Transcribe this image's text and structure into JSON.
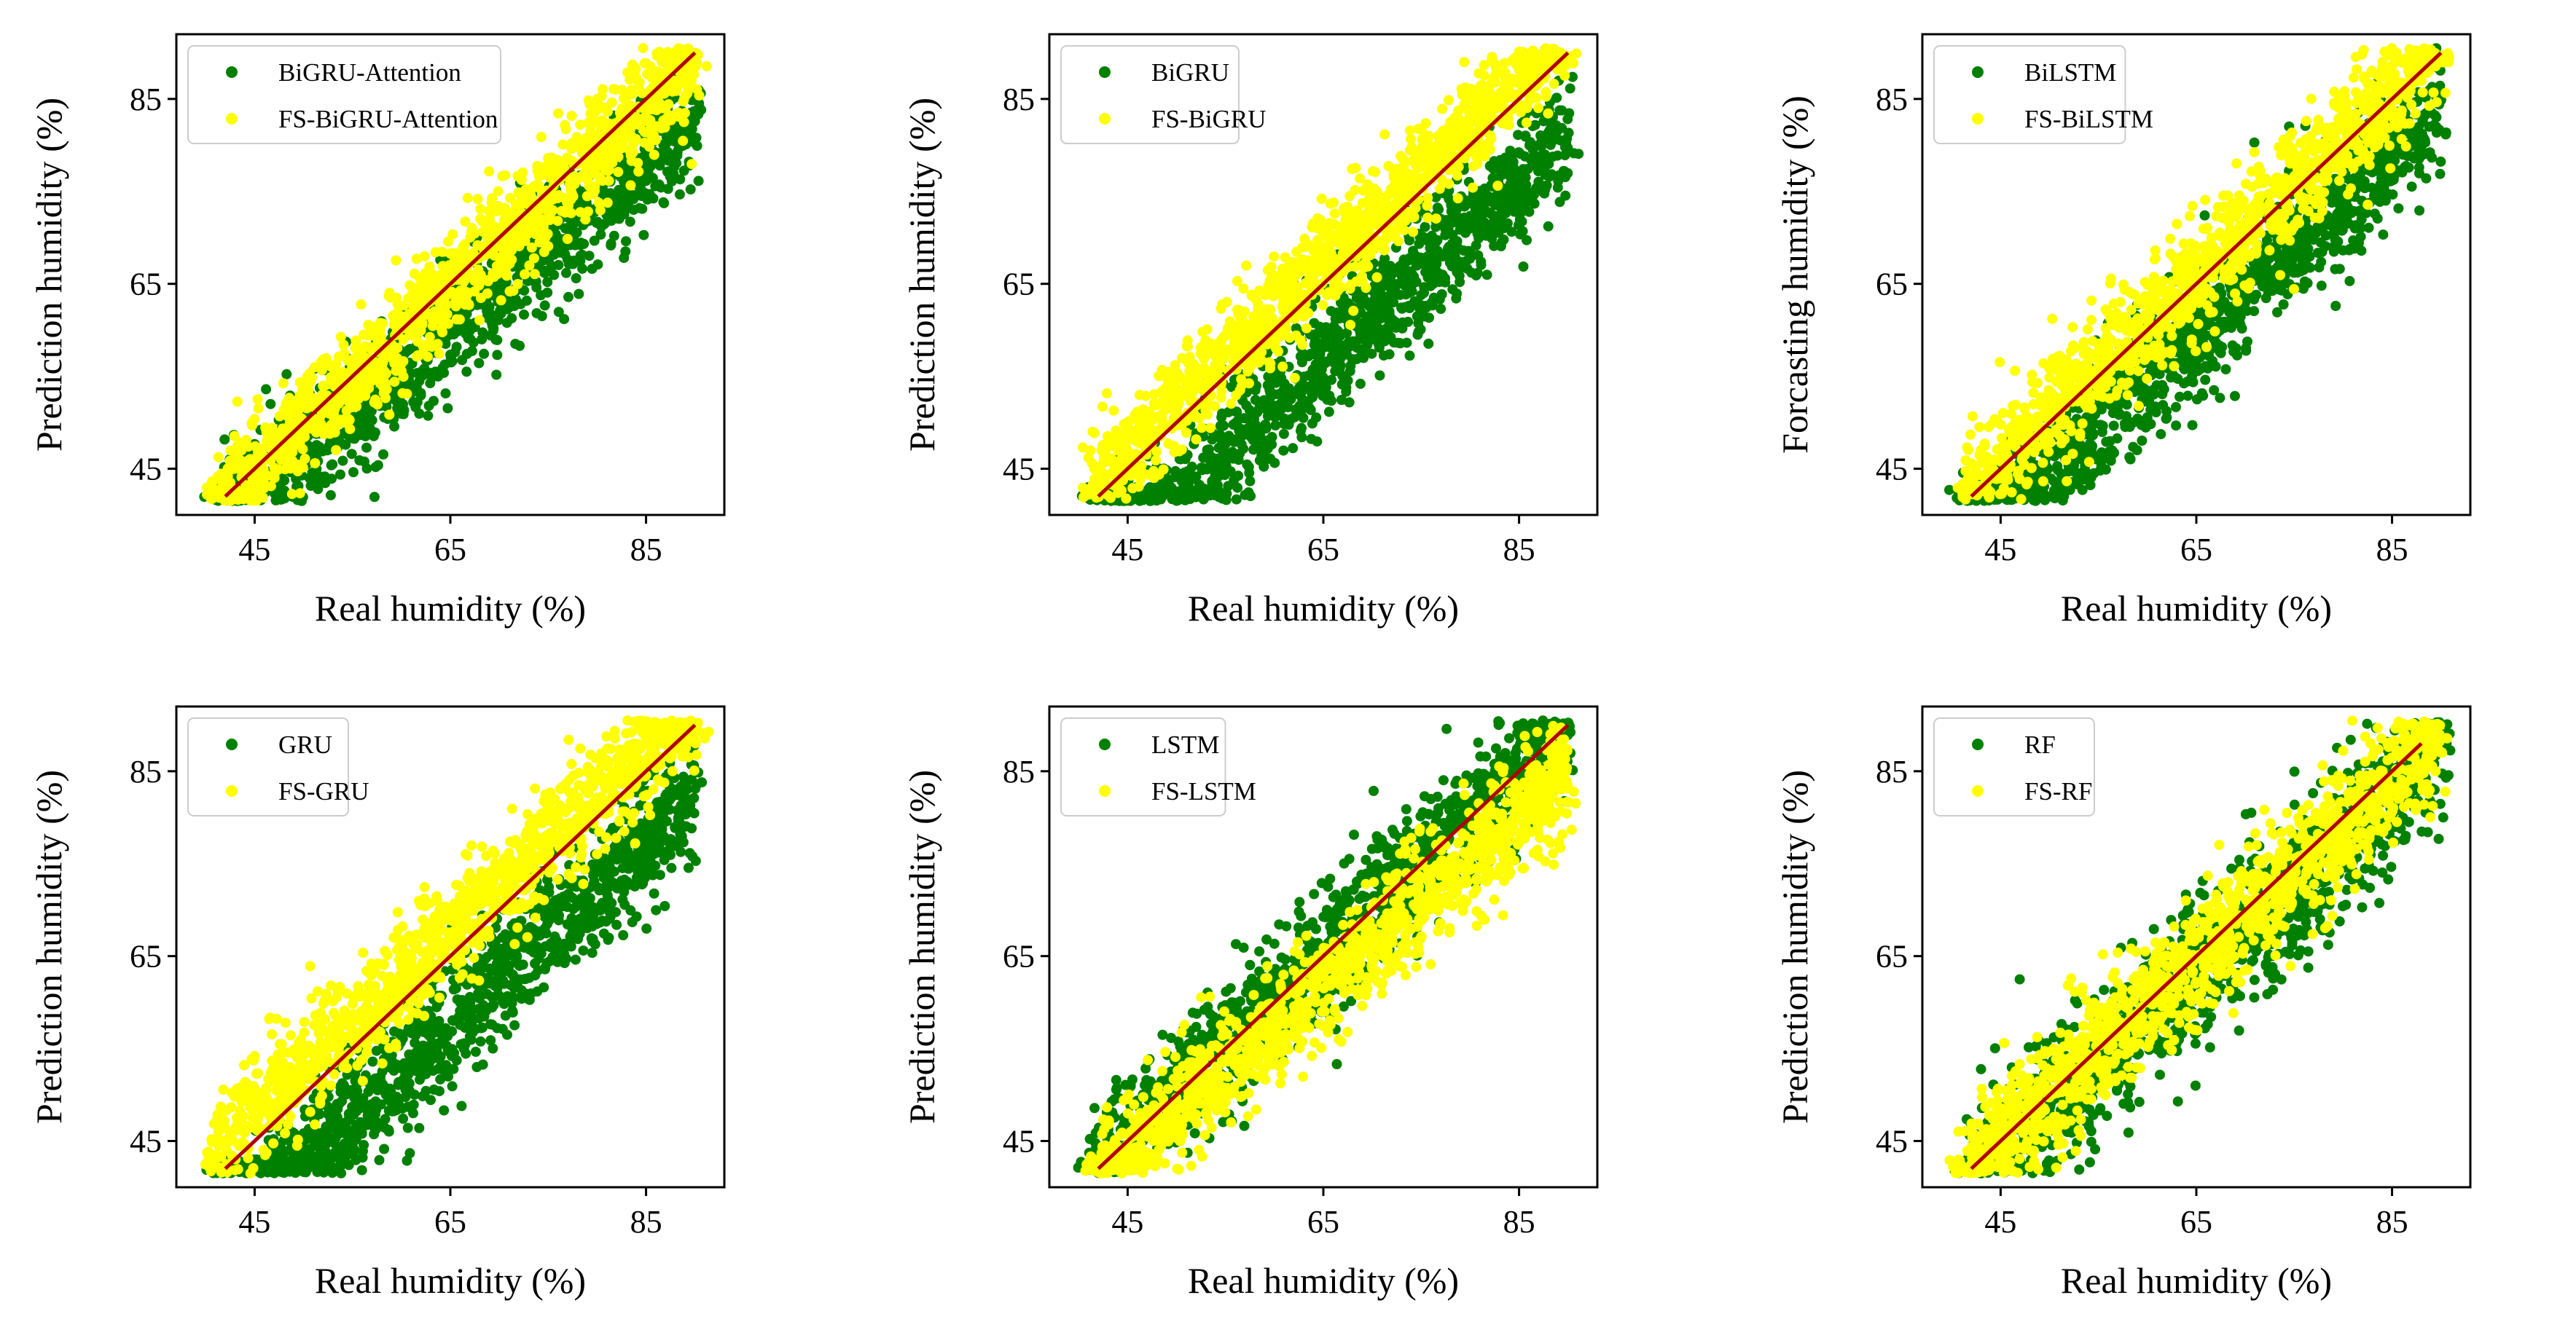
{
  "figure": {
    "colors": {
      "model": "#008000",
      "fs_model": "#ffff00",
      "reference_line": "#b00000",
      "frame": "#000000"
    }
  },
  "chart_data": [
    {
      "type": "scatter",
      "title": "",
      "xlabel": "Real humidity (%)",
      "ylabel": "Prediction humidity (%)",
      "xlim": [
        37,
        93
      ],
      "ylim": [
        40,
        92
      ],
      "xticks": [
        45,
        65,
        85
      ],
      "yticks": [
        45,
        65,
        85
      ],
      "xtick_labels": [
        "45",
        "65",
        "85"
      ],
      "ytick_labels": [
        "45",
        "65",
        "85"
      ],
      "legend_position": "upper-left",
      "reference_line": {
        "from": 42,
        "to": 90
      },
      "series": [
        {
          "name": "BiGRU-Attention",
          "color": "#008000",
          "trend_slope": 0.9,
          "trend_offset": 2.0,
          "spread": 3.4,
          "seed": 11
        },
        {
          "name": "FS-BiGRU-Attention",
          "color": "#ffff00",
          "trend_slope": 0.98,
          "trend_offset": 1.0,
          "spread": 2.9,
          "seed": 12
        }
      ]
    },
    {
      "type": "scatter",
      "title": "",
      "xlabel": "Real humidity (%)",
      "ylabel": "Prediction humidity (%)",
      "xlim": [
        37,
        93
      ],
      "ylim": [
        40,
        92
      ],
      "xticks": [
        45,
        65,
        85
      ],
      "yticks": [
        45,
        65,
        85
      ],
      "xtick_labels": [
        "45",
        "65",
        "85"
      ],
      "ytick_labels": [
        "45",
        "65",
        "85"
      ],
      "legend_position": "upper-left",
      "reference_line": {
        "from": 42,
        "to": 90
      },
      "series": [
        {
          "name": "BiGRU",
          "color": "#008000",
          "trend_slope": 0.98,
          "trend_offset": -7.0,
          "spread": 3.6,
          "seed": 21
        },
        {
          "name": "FS-BiGRU",
          "color": "#ffff00",
          "trend_slope": 1.0,
          "trend_offset": 2.0,
          "spread": 2.8,
          "seed": 22
        }
      ]
    },
    {
      "type": "scatter",
      "title": "",
      "xlabel": "Real humidity (%)",
      "ylabel": "Forcasting humidity (%)",
      "xlim": [
        37,
        93
      ],
      "ylim": [
        40,
        92
      ],
      "xticks": [
        45,
        65,
        85
      ],
      "yticks": [
        45,
        65,
        85
      ],
      "xtick_labels": [
        "45",
        "65",
        "85"
      ],
      "ytick_labels": [
        "45",
        "65",
        "85"
      ],
      "legend_position": "upper-left",
      "reference_line": {
        "from": 42,
        "to": 90
      },
      "series": [
        {
          "name": "BiLSTM",
          "color": "#008000",
          "trend_slope": 0.98,
          "trend_offset": -4.0,
          "spread": 3.4,
          "seed": 31
        },
        {
          "name": "FS-BiLSTM",
          "color": "#ffff00",
          "trend_slope": 1.0,
          "trend_offset": 1.0,
          "spread": 3.0,
          "seed": 32
        }
      ]
    },
    {
      "type": "scatter",
      "title": "",
      "xlabel": "Real humidity (%)",
      "ylabel": "Prediction humidity (%)",
      "xlim": [
        37,
        93
      ],
      "ylim": [
        40,
        92
      ],
      "xticks": [
        45,
        65,
        85
      ],
      "yticks": [
        45,
        65,
        85
      ],
      "xtick_labels": [
        "45",
        "65",
        "85"
      ],
      "ytick_labels": [
        "45",
        "65",
        "85"
      ],
      "legend_position": "upper-left",
      "reference_line": {
        "from": 42,
        "to": 90
      },
      "series": [
        {
          "name": "GRU",
          "color": "#008000",
          "trend_slope": 0.98,
          "trend_offset": -6.0,
          "spread": 3.5,
          "seed": 41
        },
        {
          "name": "FS-GRU",
          "color": "#ffff00",
          "trend_slope": 0.98,
          "trend_offset": 4.0,
          "spread": 3.0,
          "seed": 42
        }
      ]
    },
    {
      "type": "scatter",
      "title": "",
      "xlabel": "Real humidity (%)",
      "ylabel": "Prediction humidity (%)",
      "xlim": [
        37,
        93
      ],
      "ylim": [
        40,
        92
      ],
      "xticks": [
        45,
        65,
        85
      ],
      "yticks": [
        45,
        65,
        85
      ],
      "xtick_labels": [
        "45",
        "65",
        "85"
      ],
      "ytick_labels": [
        "45",
        "65",
        "85"
      ],
      "legend_position": "upper-left",
      "reference_line": {
        "from": 42,
        "to": 90
      },
      "series": [
        {
          "name": "LSTM",
          "color": "#008000",
          "trend_slope": 1.0,
          "trend_offset": 0.0,
          "spread": 3.6,
          "seed": 51
        },
        {
          "name": "FS-LSTM",
          "color": "#ffff00",
          "trend_slope": 0.92,
          "trend_offset": 2.0,
          "spread": 3.2,
          "seed": 52
        }
      ]
    },
    {
      "type": "scatter",
      "title": "",
      "xlabel": "Real humidity (%)",
      "ylabel": "Prediction humidity (%)",
      "xlim": [
        37,
        93
      ],
      "ylim": [
        40,
        92
      ],
      "xticks": [
        45,
        65,
        85
      ],
      "yticks": [
        45,
        65,
        85
      ],
      "xtick_labels": [
        "45",
        "65",
        "85"
      ],
      "ytick_labels": [
        "45",
        "65",
        "85"
      ],
      "legend_position": "upper-left",
      "reference_line": {
        "from": 42,
        "to": 88
      },
      "series": [
        {
          "name": "RF",
          "color": "#008000",
          "trend_slope": 0.95,
          "trend_offset": 1.0,
          "spread": 4.2,
          "seed": 61
        },
        {
          "name": "FS-RF",
          "color": "#ffff00",
          "trend_slope": 0.97,
          "trend_offset": 1.5,
          "spread": 3.4,
          "seed": 62
        }
      ]
    }
  ]
}
